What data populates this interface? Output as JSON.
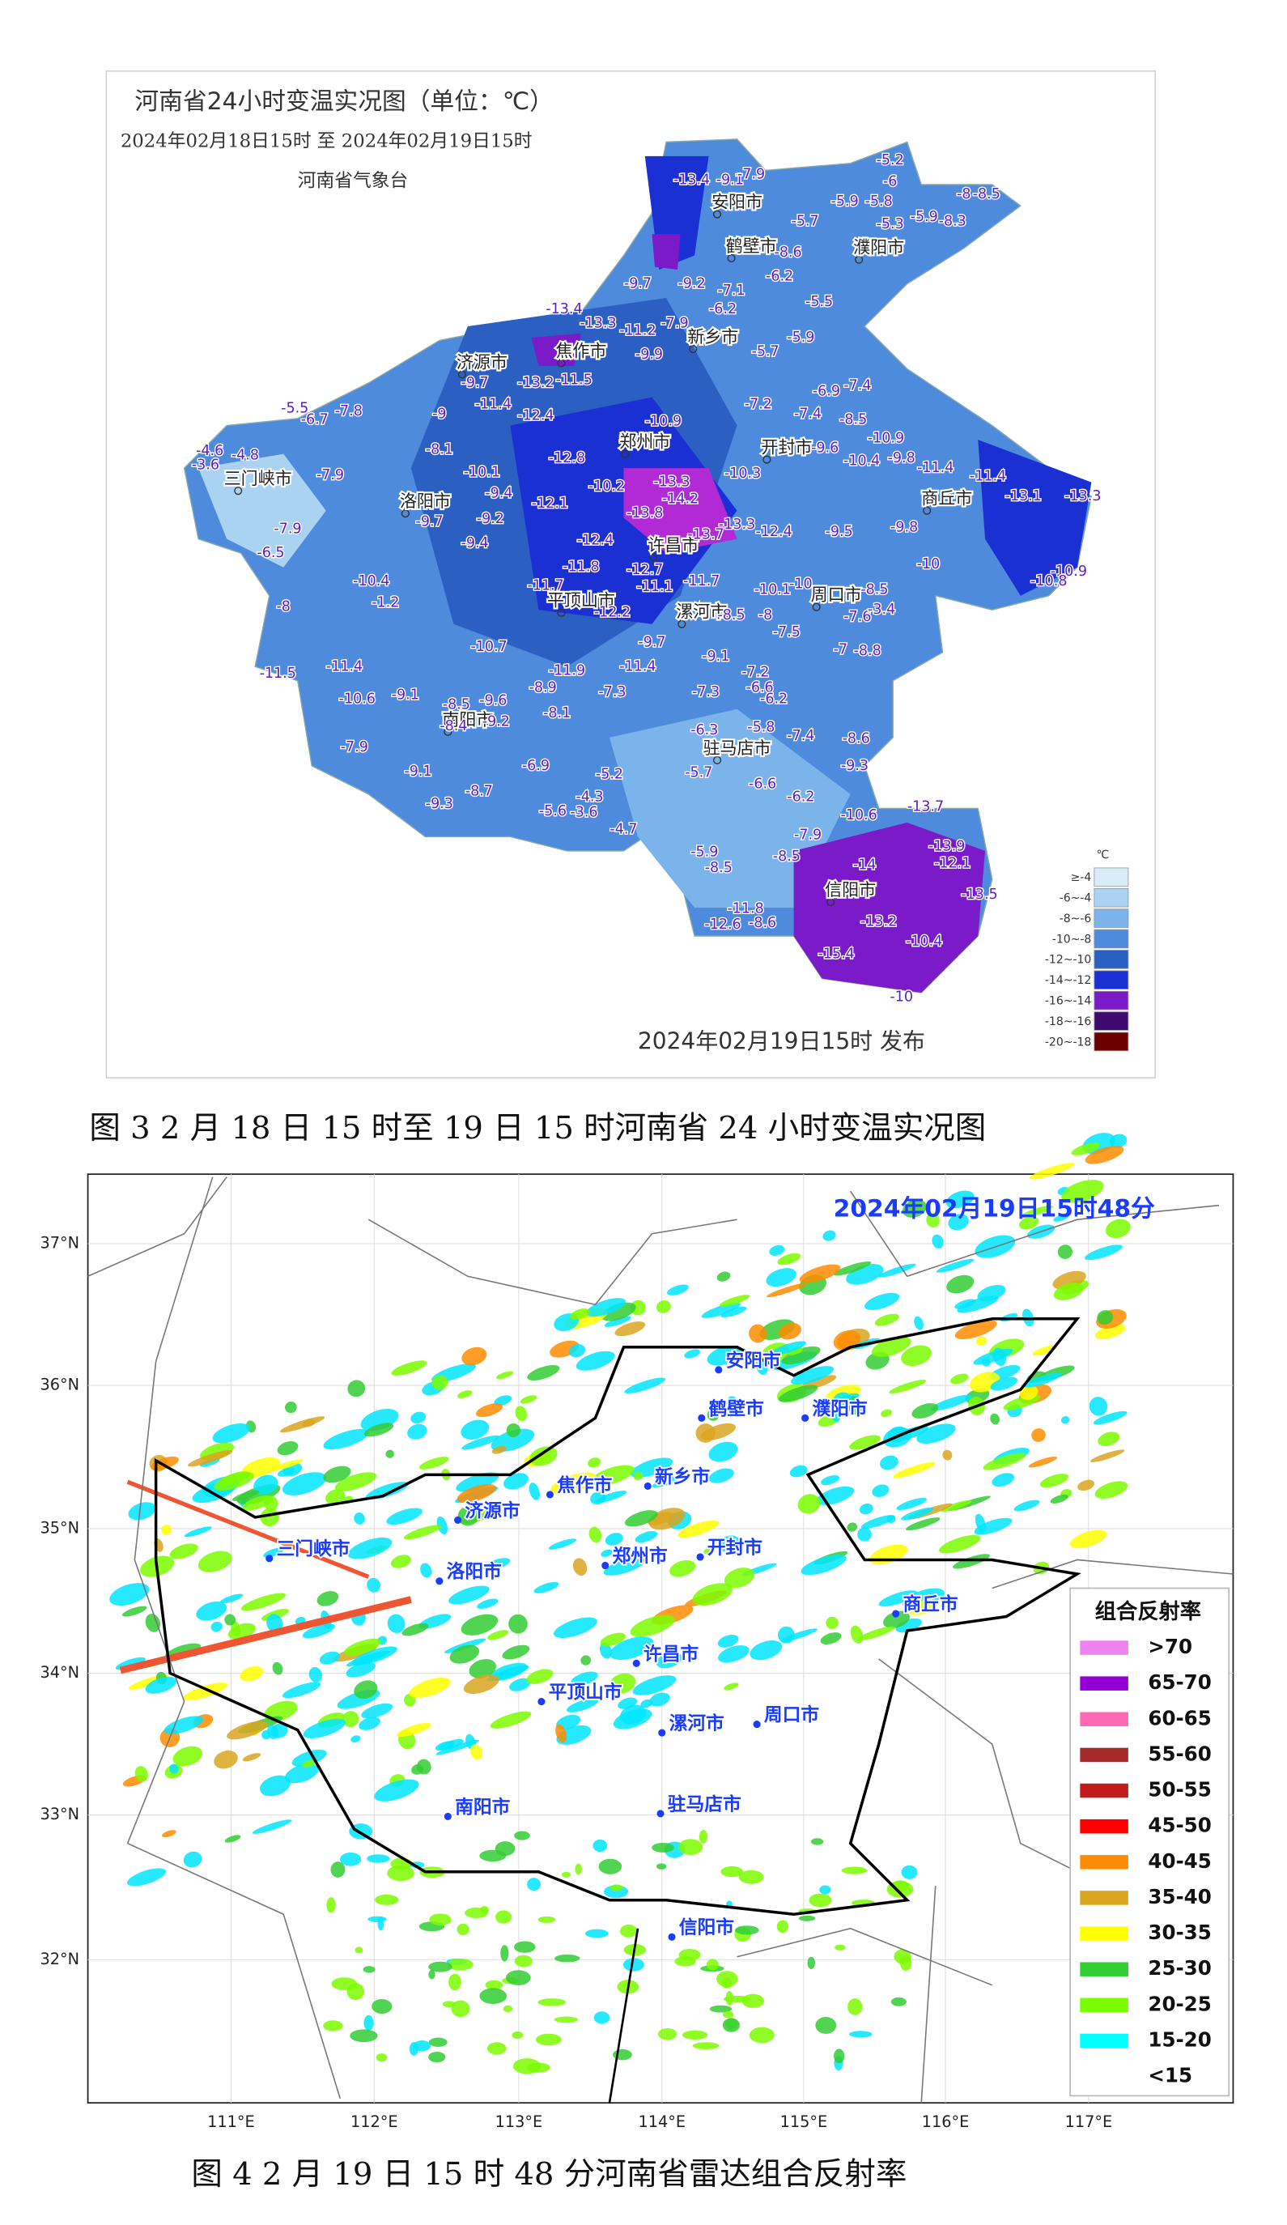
{
  "figure3": {
    "title": "河南省24小时变温实况图（单位：℃）",
    "period": "2024年02月18日15时   至   2024年02月19日15时",
    "issuer": "河南省气象台",
    "published": "2024年02月19日15时 发布",
    "cities": [
      "安阳市",
      "鹤壁市",
      "濮阳市",
      "新乡市",
      "济源市",
      "焦作市",
      "郑州市",
      "开封市",
      "三门峡市",
      "洛阳市",
      "商丘市",
      "许昌市",
      "平顶山市",
      "漯河市",
      "周口市",
      "南阳市",
      "驻马店市",
      "信阳市"
    ],
    "stations": [
      -13.4,
      -9.1,
      -7.9,
      -5.2,
      -6,
      -8,
      -8.5,
      -5.9,
      -5.8,
      -5.7,
      -5.3,
      -5.9,
      -8.3,
      -8.6,
      -9.7,
      -9.2,
      -6.2,
      -7.1,
      -6.2,
      -5.5,
      -13.4,
      -13.3,
      -11.2,
      -7.9,
      -5.9,
      -9.9,
      -11.5,
      -13.2,
      -9.7,
      -5.7,
      -6.9,
      -7.4,
      -11.4,
      -12.4,
      -7.2,
      -7.4,
      -8.5,
      -5.5,
      -6.7,
      -7.8,
      -9,
      -10.9,
      -8.1,
      -10.9,
      -10.1,
      -12.8,
      -9.6,
      -10.4,
      -9.8,
      -11.4,
      -11.4,
      -4.6,
      -4.8,
      -3.6,
      -7.9,
      -9.4,
      -12.1,
      -10.2,
      -13.3,
      -10.3,
      -14.2,
      -13.8,
      -13.1,
      -13.3,
      -9.7,
      -9.2,
      -13.7,
      -13.3,
      -12.4,
      -9.5,
      -9.8,
      -7.9,
      -6.5,
      -9.4,
      -12.4,
      -10,
      -11.8,
      -12.7,
      -10.4,
      -1.2,
      -11.7,
      -11.1,
      -11.7,
      -10.1,
      -10,
      -8.5,
      -10.9,
      -10.8,
      -8,
      -12.2,
      -8.5,
      -8,
      -7.6,
      -3.4,
      -9.7,
      -7.5,
      -10.7,
      -9.1,
      -7,
      -8.8,
      -11.4,
      -11.9,
      -11.4,
      -7.2,
      -11.5,
      -10.6,
      -9.1,
      -8.9,
      -7.3,
      -7.3,
      -6.6,
      -6.2,
      -8.5,
      -9.6,
      -8.1,
      -8.4,
      -9.2,
      -6.3,
      -5.8,
      -7.4,
      -8.6,
      -7.9,
      -9.3,
      -9.1,
      -6.9,
      -5.2,
      -5.7,
      -6.6,
      -6.2,
      -4.3,
      -8.7,
      -9.3,
      -5.6,
      -3.6,
      -13.7,
      -10.6,
      -7.9,
      -4.7,
      -13.9,
      -12.1,
      -5.9,
      -8.5,
      -14,
      -8.5,
      -13.5,
      -11.8,
      -12.6,
      -8.6,
      -13.2,
      -10.4,
      -15.4,
      -10
    ],
    "legend": {
      "unit": "℃",
      "items": [
        {
          "label": "≥-4",
          "color": "#d8edf9"
        },
        {
          "label": "-6~-4",
          "color": "#a9d3f1"
        },
        {
          "label": "-8~-6",
          "color": "#7ab4ea"
        },
        {
          "label": "-10~-8",
          "color": "#4f8bdc"
        },
        {
          "label": "-12~-10",
          "color": "#2b5fc2"
        },
        {
          "label": "-14~-12",
          "color": "#1a30d2"
        },
        {
          "label": "-16~-14",
          "color": "#7a1ac8"
        },
        {
          "label": "-18~-16",
          "color": "#3e0a70"
        },
        {
          "label": "-20~-18",
          "color": "#6a0000"
        }
      ]
    }
  },
  "caption3": "图 3   2 月 18 日 15 时至 19 日 15 时河南省 24 小时变温实况图",
  "figure4": {
    "timestamp": "2024年02月19日15时48分",
    "lat_labels": [
      "37°N",
      "36°N",
      "35°N",
      "34°N",
      "33°N",
      "32°N"
    ],
    "lon_labels": [
      "111°E",
      "112°E",
      "113°E",
      "114°E",
      "115°E",
      "116°E",
      "117°E"
    ],
    "cities": [
      "安阳市",
      "鹤壁市",
      "濮阳市",
      "焦作市",
      "新乡市",
      "济源市",
      "郑州市",
      "开封市",
      "三门峡市",
      "洛阳市",
      "商丘市",
      "许昌市",
      "平顶山市",
      "漯河市",
      "周口市",
      "南阳市",
      "驻马店市",
      "信阳市"
    ],
    "legend": {
      "title": "组合反射率",
      "items": [
        {
          "label": ">70",
          "color": "#ee82ee"
        },
        {
          "label": "65-70",
          "color": "#9400d3"
        },
        {
          "label": "60-65",
          "color": "#ff69b4"
        },
        {
          "label": "55-60",
          "color": "#a52a2a"
        },
        {
          "label": "50-55",
          "color": "#c01c1c"
        },
        {
          "label": "45-50",
          "color": "#ff0000"
        },
        {
          "label": "40-45",
          "color": "#ff8c00"
        },
        {
          "label": "35-40",
          "color": "#daa520"
        },
        {
          "label": "30-35",
          "color": "#ffff00"
        },
        {
          "label": "25-30",
          "color": "#32cd32"
        },
        {
          "label": "20-25",
          "color": "#7cfc00"
        },
        {
          "label": "15-20",
          "color": "#00ffff"
        },
        {
          "label": "<15"
        }
      ]
    }
  },
  "caption4": "图 4   2 月 19 日 15 时 48 分河南省雷达组合反射率"
}
